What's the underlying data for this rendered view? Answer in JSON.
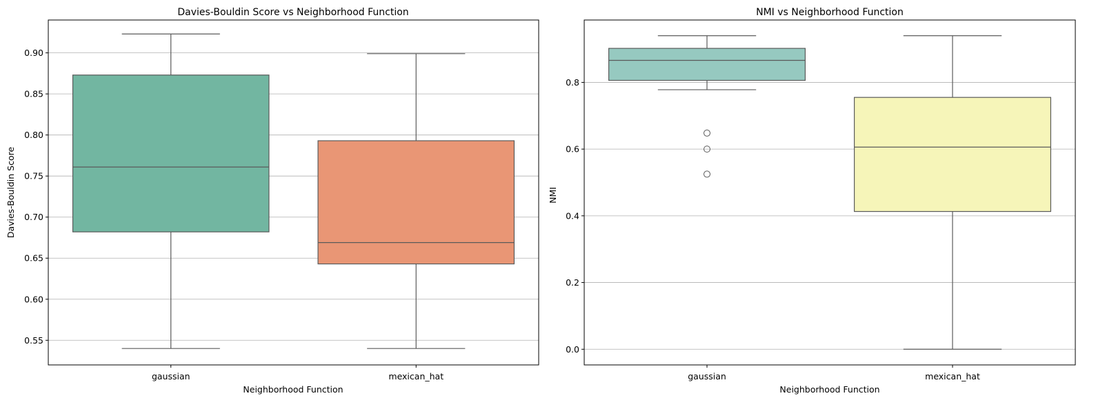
{
  "chart_data": [
    {
      "type": "box",
      "title": "Davies-Bouldin Score vs Neighborhood Function",
      "xlabel": "Neighborhood Function",
      "ylabel": "Davies-Bouldin Score",
      "ylim": [
        0.52,
        0.94
      ],
      "yticks": [
        0.55,
        0.6,
        0.65,
        0.7,
        0.75,
        0.8,
        0.85,
        0.9
      ],
      "ytick_labels": [
        "0.55",
        "0.60",
        "0.65",
        "0.70",
        "0.75",
        "0.80",
        "0.85",
        "0.90"
      ],
      "grid": "y",
      "categories": [
        "gaussian",
        "mexican_hat"
      ],
      "boxes": [
        {
          "category": "gaussian",
          "whisker_low": 0.54,
          "q1": 0.682,
          "median": 0.761,
          "q3": 0.873,
          "whisker_high": 0.923,
          "outliers": [],
          "color": "#72b6a1"
        },
        {
          "category": "mexican_hat",
          "whisker_low": 0.54,
          "q1": 0.643,
          "median": 0.669,
          "q3": 0.793,
          "whisker_high": 0.899,
          "outliers": [],
          "color": "#e99675"
        }
      ]
    },
    {
      "type": "box",
      "title": "NMI vs Neighborhood Function",
      "xlabel": "Neighborhood Function",
      "ylabel": "NMI",
      "ylim": [
        -0.047,
        0.987
      ],
      "yticks": [
        0.0,
        0.2,
        0.4,
        0.6,
        0.8
      ],
      "ytick_labels": [
        "0.0",
        "0.2",
        "0.4",
        "0.6",
        "0.8"
      ],
      "grid": "y",
      "categories": [
        "gaussian",
        "mexican_hat"
      ],
      "boxes": [
        {
          "category": "gaussian",
          "whisker_low": 0.778,
          "q1": 0.806,
          "median": 0.866,
          "q3": 0.902,
          "whisker_high": 0.94,
          "outliers": [
            0.648,
            0.6,
            0.525
          ],
          "color": "#96c9c0"
        },
        {
          "category": "mexican_hat",
          "whisker_low": 0.0,
          "q1": 0.413,
          "median": 0.606,
          "q3": 0.755,
          "whisker_high": 0.94,
          "outliers": [],
          "color": "#f6f5b9"
        }
      ]
    }
  ]
}
